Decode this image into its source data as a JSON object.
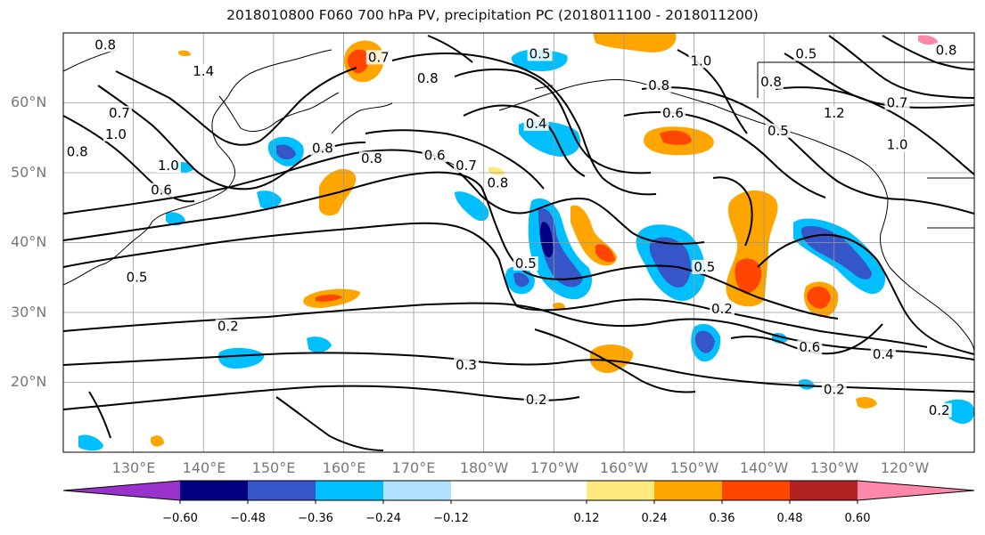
{
  "title": "2018010800 F060 700 hPa PV, precipitation PC (2018011100 - 2018011200)",
  "map": {
    "lat_labels": [
      "60°N",
      "50°N",
      "40°N",
      "30°N",
      "20°N"
    ],
    "lon_labels": [
      "130°E",
      "140°E",
      "150°E",
      "160°E",
      "170°E",
      "180°W",
      "170°W",
      "160°W",
      "150°W",
      "140°W",
      "130°W",
      "120°W"
    ],
    "extent": {
      "lon_min": 120,
      "lon_max": 250,
      "lat_min": 10,
      "lat_max": 70
    },
    "contour_labels": [
      {
        "text": "0.8",
        "lon": 126,
        "lat": 67.8
      },
      {
        "text": "1.4",
        "lon": 140,
        "lat": 64
      },
      {
        "text": "0.7",
        "lon": 128,
        "lat": 58
      },
      {
        "text": "0.8",
        "lon": 122,
        "lat": 52.5
      },
      {
        "text": "1.0",
        "lon": 127.5,
        "lat": 55
      },
      {
        "text": "1.0",
        "lon": 135,
        "lat": 50.5
      },
      {
        "text": "0.6",
        "lon": 134,
        "lat": 47
      },
      {
        "text": "0.8",
        "lon": 157,
        "lat": 53
      },
      {
        "text": "0.8",
        "lon": 164,
        "lat": 51.5
      },
      {
        "text": "0.7",
        "lon": 165,
        "lat": 66
      },
      {
        "text": "0.8",
        "lon": 172,
        "lat": 63
      },
      {
        "text": "0.5",
        "lon": 188,
        "lat": 66.5
      },
      {
        "text": "0.4",
        "lon": 187.5,
        "lat": 56.5
      },
      {
        "text": "0.6",
        "lon": 173,
        "lat": 52
      },
      {
        "text": "0.7",
        "lon": 177.5,
        "lat": 50.5
      },
      {
        "text": "0.8",
        "lon": 182,
        "lat": 48
      },
      {
        "text": "0.8",
        "lon": 205,
        "lat": 62
      },
      {
        "text": "1.0",
        "lon": 211,
        "lat": 65.5
      },
      {
        "text": "0.6",
        "lon": 207,
        "lat": 58
      },
      {
        "text": "0.5",
        "lon": 226,
        "lat": 66.5
      },
      {
        "text": "0.8",
        "lon": 221,
        "lat": 62.5
      },
      {
        "text": "0.5",
        "lon": 222,
        "lat": 55.5
      },
      {
        "text": "1.2",
        "lon": 230,
        "lat": 58
      },
      {
        "text": "0.7",
        "lon": 239,
        "lat": 59.5
      },
      {
        "text": "1.0",
        "lon": 239,
        "lat": 53.5
      },
      {
        "text": "0.8",
        "lon": 246,
        "lat": 67
      },
      {
        "text": "0.5",
        "lon": 130.5,
        "lat": 34.5
      },
      {
        "text": "0.5",
        "lon": 186,
        "lat": 36.5
      },
      {
        "text": "0.5",
        "lon": 211.5,
        "lat": 36
      },
      {
        "text": "0.2",
        "lon": 143.5,
        "lat": 27.5
      },
      {
        "text": "0.3",
        "lon": 177.5,
        "lat": 22
      },
      {
        "text": "0.2",
        "lon": 187.5,
        "lat": 17
      },
      {
        "text": "0.2",
        "lon": 214,
        "lat": 30
      },
      {
        "text": "0.6",
        "lon": 226.5,
        "lat": 24.5
      },
      {
        "text": "0.4",
        "lon": 237,
        "lat": 23.5
      },
      {
        "text": "0.2",
        "lon": 230,
        "lat": 18.5
      },
      {
        "text": "0.2",
        "lon": 245,
        "lat": 15.5
      }
    ]
  },
  "colorbar": {
    "colors": [
      "#9932CC",
      "#000080",
      "#3655C8",
      "#00BFFF",
      "#B0E2FF",
      "#FFFFFF",
      "#FFFFFF",
      "#FFE97F",
      "#FFA500",
      "#FF4500",
      "#B22222",
      "#FF88AA"
    ],
    "tick_labels": [
      "−0.60",
      "−0.48",
      "−0.36",
      "−0.24",
      "−0.12",
      "0.12",
      "0.24",
      "0.36",
      "0.48",
      "0.60"
    ]
  }
}
